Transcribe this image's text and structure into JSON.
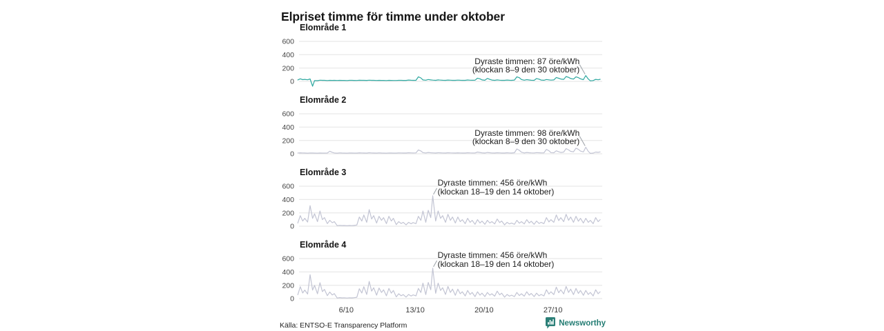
{
  "title": "Elpriset timme för timme under oktober",
  "source": "Källa: ENTSO-E Transparency Platform",
  "brand": {
    "name": "Newsworthy",
    "color": "#237c73"
  },
  "axis": {
    "y_ticks": [
      600,
      400,
      200,
      0
    ],
    "x_ticks": [
      {
        "day": 5,
        "label": "6/10"
      },
      {
        "day": 12,
        "label": "13/10"
      },
      {
        "day": 19,
        "label": "20/10"
      },
      {
        "day": 26,
        "label": "27/10"
      }
    ],
    "days_in_month": 31,
    "gridline_color": "#e3e3e3",
    "leader_color": "#9aa0a6"
  },
  "chart_data": [
    {
      "type": "line",
      "name": "Elområde 1",
      "unit": "öre/kWh",
      "color": "#2ca79f",
      "samples_per_day": 4,
      "sample_hours": [
        2,
        8,
        14,
        19
      ],
      "values": [
        22,
        38,
        26,
        30,
        24,
        36,
        -72,
        12,
        10,
        18,
        15,
        16,
        12,
        16,
        14,
        15,
        13,
        15,
        14,
        14,
        12,
        16,
        15,
        14,
        13,
        17,
        15,
        15,
        14,
        18,
        16,
        15,
        13,
        16,
        14,
        14,
        12,
        15,
        14,
        13,
        13,
        16,
        15,
        14,
        14,
        20,
        17,
        16,
        16,
        68,
        52,
        22,
        18,
        28,
        22,
        19,
        16,
        22,
        19,
        17,
        15,
        20,
        18,
        16,
        15,
        19,
        17,
        16,
        16,
        21,
        18,
        17,
        18,
        48,
        38,
        22,
        17,
        44,
        30,
        20,
        16,
        22,
        18,
        16,
        15,
        20,
        17,
        16,
        20,
        68,
        55,
        28,
        18,
        26,
        21,
        17,
        16,
        42,
        33,
        20,
        17,
        28,
        23,
        19,
        22,
        58,
        47,
        35,
        30,
        72,
        60,
        42,
        34,
        68,
        56,
        38,
        26,
        87,
        35,
        8,
        12,
        30,
        24,
        31
      ],
      "max_value": 87,
      "annotation": {
        "line1": "Dyraste timmen: 87 öre/kWh",
        "line2": "(klockan 8–9 den 30 oktober)",
        "align": "right",
        "anchor_day": 29,
        "anchor_hour": 8,
        "anchor_value": 87
      }
    },
    {
      "type": "line",
      "name": "Elområde 2",
      "unit": "öre/kWh",
      "color": "#c2c4d3",
      "samples_per_day": 4,
      "sample_hours": [
        2,
        8,
        14,
        19
      ],
      "values": [
        10,
        14,
        12,
        11,
        9,
        12,
        11,
        10,
        9,
        11,
        10,
        10,
        11,
        38,
        22,
        12,
        9,
        13,
        11,
        10,
        9,
        12,
        11,
        10,
        10,
        14,
        12,
        11,
        10,
        15,
        12,
        11,
        10,
        13,
        11,
        10,
        9,
        12,
        11,
        10,
        10,
        13,
        12,
        11,
        11,
        16,
        13,
        12,
        13,
        58,
        42,
        18,
        12,
        20,
        16,
        13,
        11,
        16,
        14,
        12,
        11,
        15,
        13,
        12,
        11,
        14,
        12,
        11,
        11,
        16,
        13,
        12,
        12,
        26,
        20,
        14,
        11,
        20,
        16,
        12,
        11,
        15,
        13,
        11,
        11,
        15,
        12,
        11,
        15,
        72,
        52,
        24,
        12,
        20,
        16,
        13,
        12,
        18,
        15,
        13,
        14,
        66,
        46,
        18,
        15,
        44,
        30,
        20,
        26,
        78,
        58,
        36,
        30,
        84,
        66,
        40,
        28,
        98,
        36,
        6,
        10,
        26,
        22,
        28
      ],
      "max_value": 98,
      "annotation": {
        "line1": "Dyraste timmen: 98 öre/kWh",
        "line2": "(klockan 8–9 den 30 oktober)",
        "align": "right",
        "anchor_day": 29,
        "anchor_hour": 8,
        "anchor_value": 98
      }
    },
    {
      "type": "line",
      "name": "Elområde 3",
      "unit": "öre/kWh",
      "color": "#c2c4d3",
      "samples_per_day": 4,
      "sample_hours": [
        2,
        8,
        14,
        19
      ],
      "values": [
        48,
        158,
        78,
        118,
        62,
        308,
        118,
        185,
        68,
        228,
        98,
        128,
        38,
        88,
        52,
        68,
        8,
        12,
        9,
        10,
        6,
        10,
        8,
        11,
        18,
        138,
        78,
        168,
        58,
        248,
        108,
        158,
        48,
        148,
        88,
        128,
        38,
        148,
        78,
        118,
        24,
        68,
        40,
        58,
        20,
        58,
        36,
        54,
        38,
        148,
        88,
        228,
        58,
        238,
        128,
        456,
        78,
        228,
        118,
        158,
        58,
        178,
        88,
        138,
        48,
        138,
        68,
        98,
        38,
        118,
        58,
        88,
        28,
        98,
        48,
        78,
        28,
        88,
        48,
        68,
        34,
        108,
        54,
        78,
        20,
        58,
        34,
        48,
        28,
        88,
        44,
        68,
        34,
        98,
        48,
        74,
        28,
        78,
        40,
        58,
        38,
        128,
        64,
        98,
        58,
        168,
        84,
        128,
        68,
        178,
        88,
        138,
        58,
        148,
        74,
        118,
        48,
        118,
        58,
        88,
        38,
        128,
        68,
        98
      ],
      "max_value": 456,
      "annotation": {
        "line1": "Dyraste timmen: 456 öre/kWh",
        "line2": "(klockan 18–19 den 14 oktober)",
        "align": "left",
        "anchor_day": 13,
        "anchor_hour": 19,
        "anchor_value": 456
      }
    },
    {
      "type": "line",
      "name": "Elområde 4",
      "unit": "öre/kWh",
      "color": "#c2c4d3",
      "samples_per_day": 4,
      "sample_hours": [
        2,
        8,
        14,
        19
      ],
      "values": [
        58,
        178,
        84,
        128,
        68,
        358,
        128,
        198,
        72,
        238,
        104,
        138,
        44,
        98,
        54,
        74,
        8,
        14,
        10,
        12,
        8,
        12,
        10,
        13,
        20,
        148,
        84,
        178,
        62,
        258,
        112,
        162,
        52,
        158,
        92,
        132,
        42,
        152,
        82,
        122,
        26,
        72,
        42,
        60,
        22,
        62,
        38,
        56,
        40,
        152,
        92,
        232,
        60,
        242,
        132,
        456,
        80,
        232,
        122,
        162,
        62,
        182,
        92,
        142,
        50,
        142,
        72,
        102,
        40,
        122,
        62,
        92,
        30,
        102,
        52,
        82,
        30,
        92,
        52,
        72,
        36,
        112,
        56,
        82,
        22,
        62,
        36,
        52,
        30,
        92,
        46,
        72,
        36,
        102,
        52,
        78,
        30,
        82,
        42,
        62,
        40,
        132,
        68,
        102,
        60,
        172,
        88,
        132,
        70,
        182,
        92,
        142,
        60,
        152,
        78,
        122,
        50,
        122,
        62,
        92,
        40,
        132,
        72,
        102
      ],
      "max_value": 456,
      "annotation": {
        "line1": "Dyraste timmen: 456 öre/kWh",
        "line2": "(klockan 18–19 den 14 oktober)",
        "align": "left",
        "anchor_day": 13,
        "anchor_hour": 19,
        "anchor_value": 456
      }
    }
  ]
}
